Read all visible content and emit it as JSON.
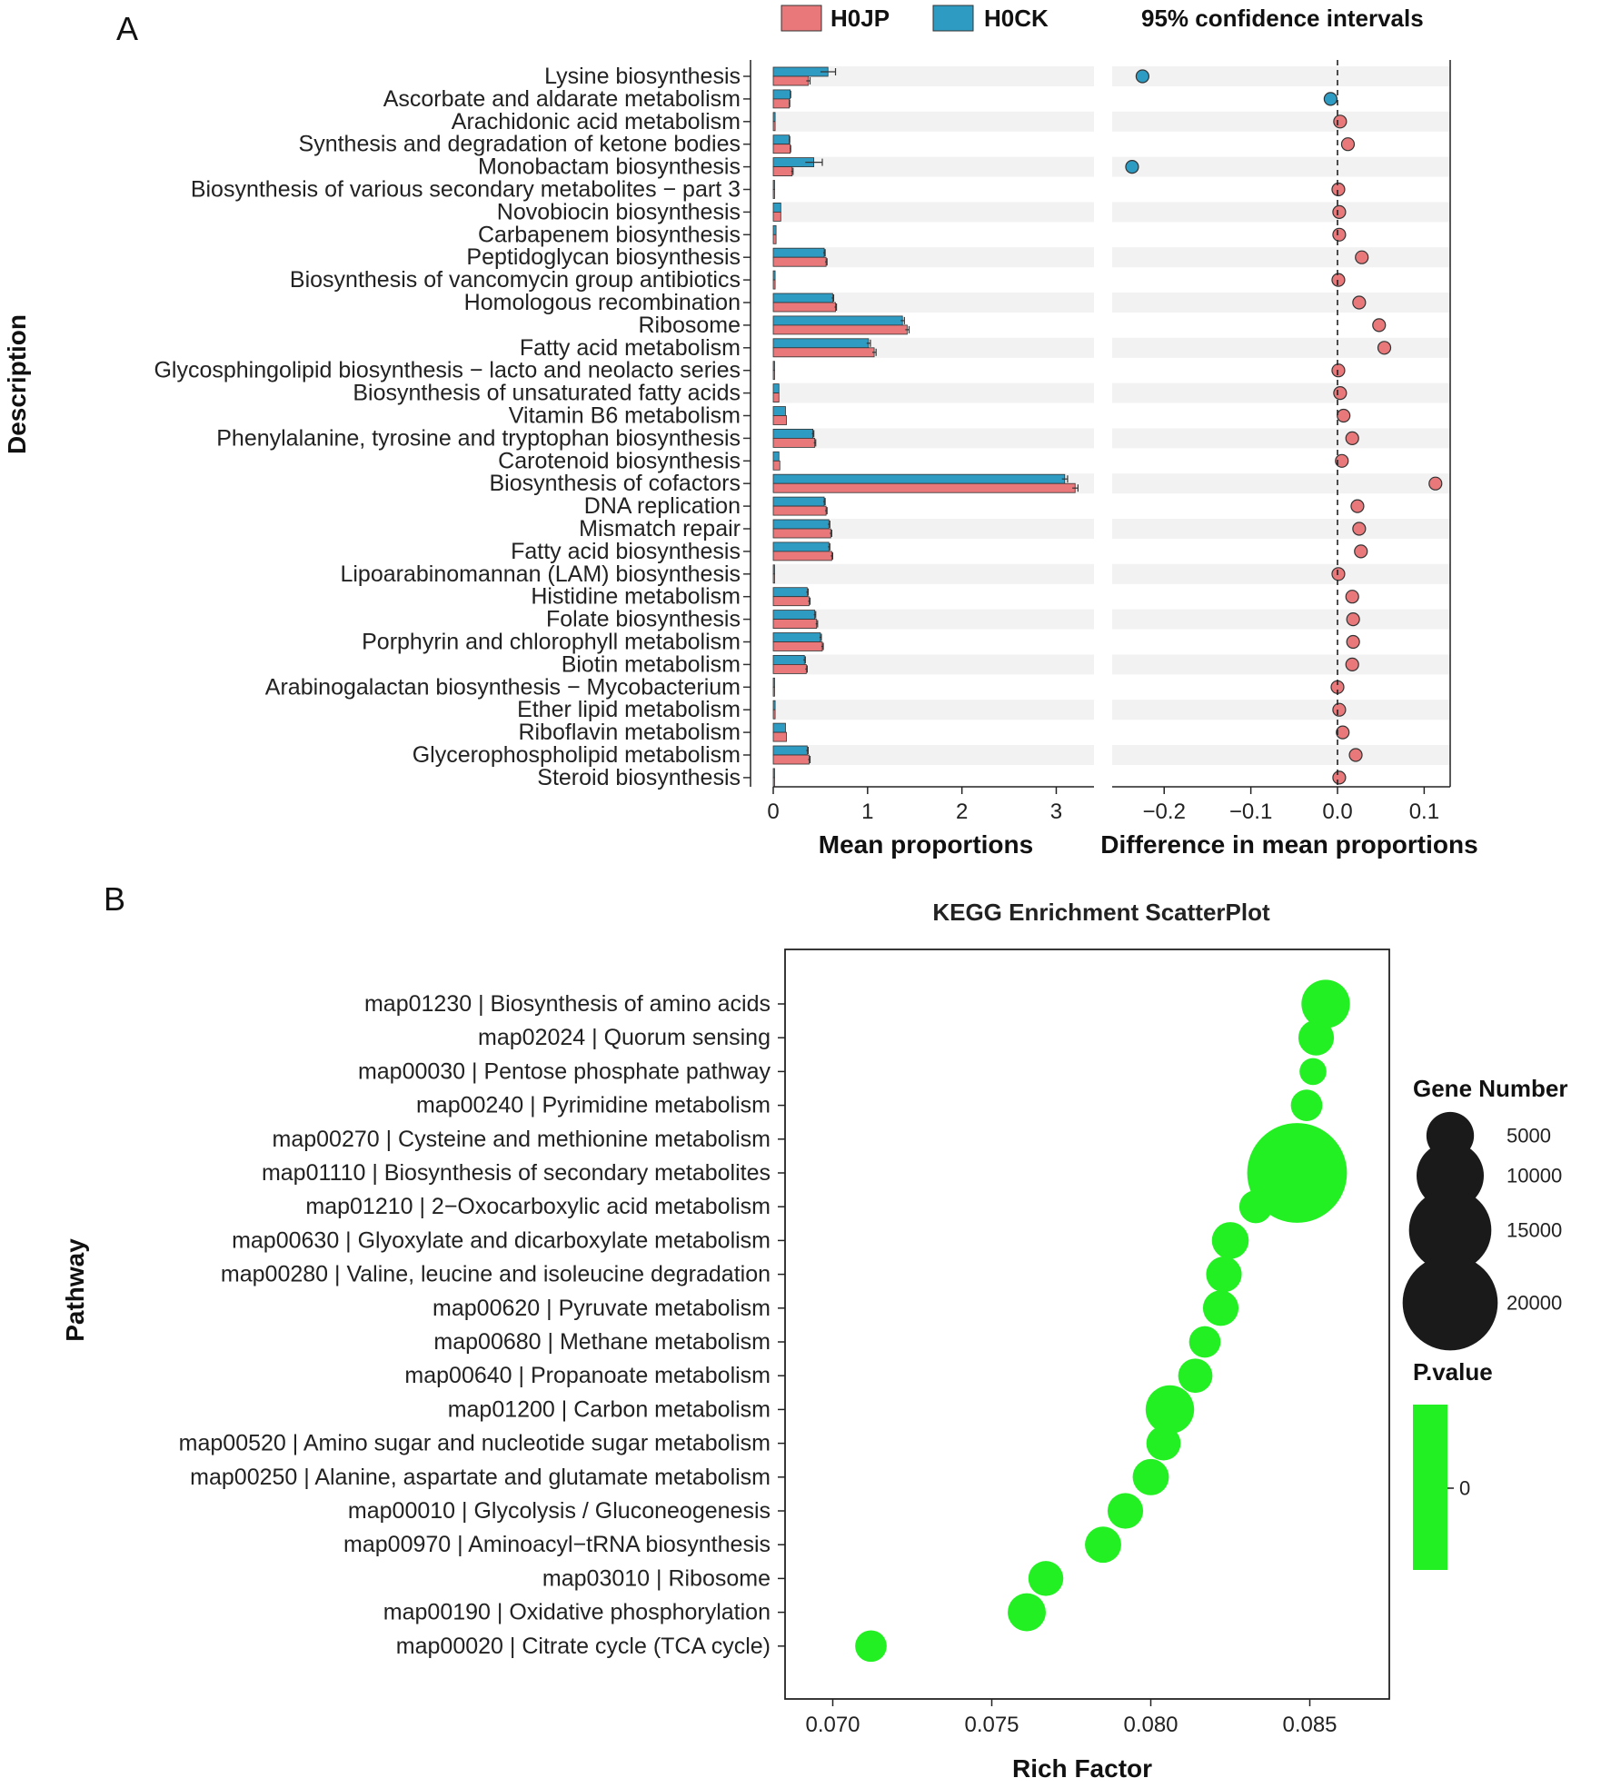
{
  "colors": {
    "h0jp": "#e8787a",
    "h0ck": "#2e9bc3",
    "enrich": "#22f022",
    "stripe": "#f2f2f2"
  },
  "chart_data": [
    {
      "panel": "A",
      "type": "bar",
      "title": "",
      "ylabel": "Description",
      "legend": {
        "position": "top",
        "entries": [
          "H0JP",
          "H0CK"
        ]
      },
      "categories": [
        "Lysine biosynthesis",
        "Ascorbate and aldarate metabolism",
        "Arachidonic acid metabolism",
        "Synthesis and degradation of ketone bodies",
        "Monobactam biosynthesis",
        "Biosynthesis of various secondary metabolites − part 3",
        "Novobiocin biosynthesis",
        "Carbapenem biosynthesis",
        "Peptidoglycan biosynthesis",
        "Biosynthesis of vancomycin group antibiotics",
        "Homologous recombination",
        "Ribosome",
        "Fatty acid metabolism",
        "Glycosphingolipid biosynthesis − lacto and neolacto series",
        "Biosynthesis of unsaturated fatty acids",
        "Vitamin B6 metabolism",
        "Phenylalanine, tyrosine and tryptophan biosynthesis",
        "Carotenoid biosynthesis",
        "Biosynthesis of cofactors",
        "DNA replication",
        "Mismatch repair",
        "Fatty acid biosynthesis",
        "Lipoarabinomannan (LAM) biosynthesis",
        "Histidine metabolism",
        "Folate biosynthesis",
        "Porphyrin and chlorophyll metabolism",
        "Biotin metabolism",
        "Arabinogalactan biosynthesis − Mycobacterium",
        "Ether lipid metabolism",
        "Riboflavin metabolism",
        "Glycerophospholipid metabolism",
        "Steroid biosynthesis"
      ],
      "series": [
        {
          "name": "H0JP",
          "values": [
            0.37,
            0.17,
            0.02,
            0.18,
            0.2,
            0.005,
            0.08,
            0.03,
            0.56,
            0.02,
            0.66,
            1.42,
            1.07,
            0.005,
            0.06,
            0.14,
            0.44,
            0.07,
            3.2,
            0.56,
            0.61,
            0.62,
            0.005,
            0.38,
            0.46,
            0.52,
            0.35,
            0.005,
            0.02,
            0.14,
            0.38,
            0.01
          ]
        },
        {
          "name": "H0CK",
          "values": [
            0.58,
            0.18,
            0.02,
            0.17,
            0.43,
            0.005,
            0.08,
            0.03,
            0.54,
            0.02,
            0.63,
            1.37,
            1.01,
            0.005,
            0.06,
            0.13,
            0.42,
            0.06,
            3.09,
            0.54,
            0.59,
            0.59,
            0.005,
            0.36,
            0.44,
            0.5,
            0.33,
            0.005,
            0.02,
            0.13,
            0.36,
            0.01
          ]
        }
      ],
      "errors": {
        "H0JP": [
          0.02,
          0.005,
          0,
          0.005,
          0.01,
          0,
          0,
          0,
          0.01,
          0,
          0.01,
          0.02,
          0.02,
          0,
          0,
          0,
          0.01,
          0,
          0.03,
          0.01,
          0.01,
          0.01,
          0,
          0.01,
          0.01,
          0.01,
          0.01,
          0,
          0,
          0,
          0.01,
          0
        ],
        "H0CK": [
          0.08,
          0.005,
          0,
          0.005,
          0.09,
          0,
          0,
          0,
          0.01,
          0,
          0.01,
          0.02,
          0.02,
          0,
          0,
          0,
          0.01,
          0,
          0.03,
          0.01,
          0.01,
          0.01,
          0,
          0.01,
          0.01,
          0.01,
          0.01,
          0,
          0,
          0,
          0.01,
          0
        ]
      },
      "xlabel": "Mean proportions",
      "xlim": [
        0,
        3.4
      ],
      "xticks": [
        0,
        1,
        2,
        3
      ]
    },
    {
      "panel": "A",
      "type": "scatter",
      "title": "95% confidence intervals",
      "xlabel": "Difference in mean proportions",
      "xlim": [
        -0.26,
        0.13
      ],
      "xticks": [
        -0.2,
        -0.1,
        0.0,
        0.1
      ],
      "xtick_labels": [
        "−0.2",
        "−0.1",
        "0.0",
        "0.1"
      ],
      "reference_line": 0,
      "differences": [
        -0.225,
        -0.008,
        0.003,
        0.012,
        -0.237,
        0.001,
        0.002,
        0.002,
        0.028,
        0.001,
        0.025,
        0.048,
        0.054,
        0.001,
        0.003,
        0.007,
        0.017,
        0.005,
        0.113,
        0.023,
        0.025,
        0.027,
        0.001,
        0.017,
        0.018,
        0.018,
        0.017,
        0.0,
        0.002,
        0.006,
        0.021,
        0.002
      ]
    },
    {
      "panel": "B",
      "type": "scatter",
      "title": "KEGG Enrichment ScatterPlot",
      "xlabel": "Rich Factor",
      "ylabel": "Pathway",
      "xlim": [
        0.0685,
        0.0875
      ],
      "xticks": [
        0.07,
        0.075,
        0.08,
        0.085
      ],
      "xtick_labels": [
        "0.070",
        "0.075",
        "0.080",
        "0.085"
      ],
      "pathways": [
        "map01230 | Biosynthesis of amino acids",
        "map02024 | Quorum sensing",
        "map00030 | Pentose phosphate pathway",
        "map00240 | Pyrimidine metabolism",
        "map00270 | Cysteine and methionine metabolism",
        "map01110 | Biosynthesis of secondary metabolites",
        "map01210 | 2−Oxocarboxylic acid metabolism",
        "map00630 | Glyoxylate and dicarboxylate metabolism",
        "map00280 | Valine, leucine and isoleucine degradation",
        "map00620 | Pyruvate metabolism",
        "map00680 | Methane metabolism",
        "map00640 | Propanoate metabolism",
        "map01200 | Carbon metabolism",
        "map00520 | Amino sugar and nucleotide sugar metabolism",
        "map00250 | Alanine, aspartate and glutamate metabolism",
        "map00010 | Glycolysis / Gluconeogenesis",
        "map00970 | Aminoacyl−tRNA biosynthesis",
        "map03010 | Ribosome",
        "map00190 | Oxidative phosphorylation",
        "map00020 | Citrate cycle (TCA cycle)"
      ],
      "rich_factor": [
        0.0855,
        0.0852,
        0.0851,
        0.0849,
        0.0846,
        0.0846,
        0.0833,
        0.0825,
        0.0823,
        0.0822,
        0.0817,
        0.0814,
        0.0806,
        0.0804,
        0.08,
        0.0792,
        0.0785,
        0.0767,
        0.0761,
        0.0712
      ],
      "gene_number": [
        5200,
        2800,
        1600,
        2200,
        2200,
        22000,
        2400,
        3000,
        2800,
        2800,
        2200,
        2600,
        5200,
        2600,
        2900,
        2800,
        2900,
        2700,
        3200,
        2200
      ],
      "size_legend": {
        "title": "Gene Number",
        "values": [
          5000,
          10000,
          15000,
          20000
        ],
        "labels": [
          "5000",
          "10000",
          "15000",
          "20000"
        ]
      },
      "color_legend": {
        "title": "P.value",
        "labels": [
          "0"
        ]
      }
    }
  ],
  "panel_labels": [
    "A",
    "B"
  ]
}
